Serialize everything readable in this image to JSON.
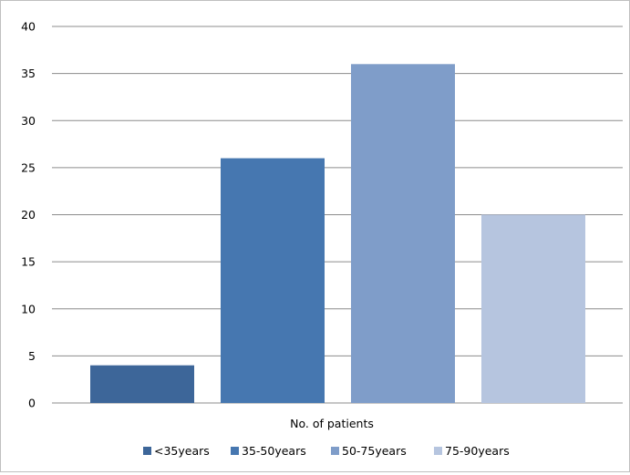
{
  "chart_data": {
    "type": "bar",
    "categories": [
      "No. of patients"
    ],
    "series": [
      {
        "name": "<35years",
        "values": [
          4
        ],
        "color": "#3d6699"
      },
      {
        "name": "35-50years",
        "values": [
          26
        ],
        "color": "#4677b0"
      },
      {
        "name": "50-75years",
        "values": [
          36
        ],
        "color": "#7f9dc9"
      },
      {
        "name": "75-90years",
        "values": [
          20
        ],
        "color": "#b6c5df"
      }
    ],
    "xlabel": "No. of patients",
    "ylim": [
      0,
      40
    ],
    "yticks": [
      "0",
      "5",
      "10",
      "15",
      "20",
      "25",
      "30",
      "35",
      "40"
    ],
    "grid": true,
    "legend_position": "bottom"
  }
}
